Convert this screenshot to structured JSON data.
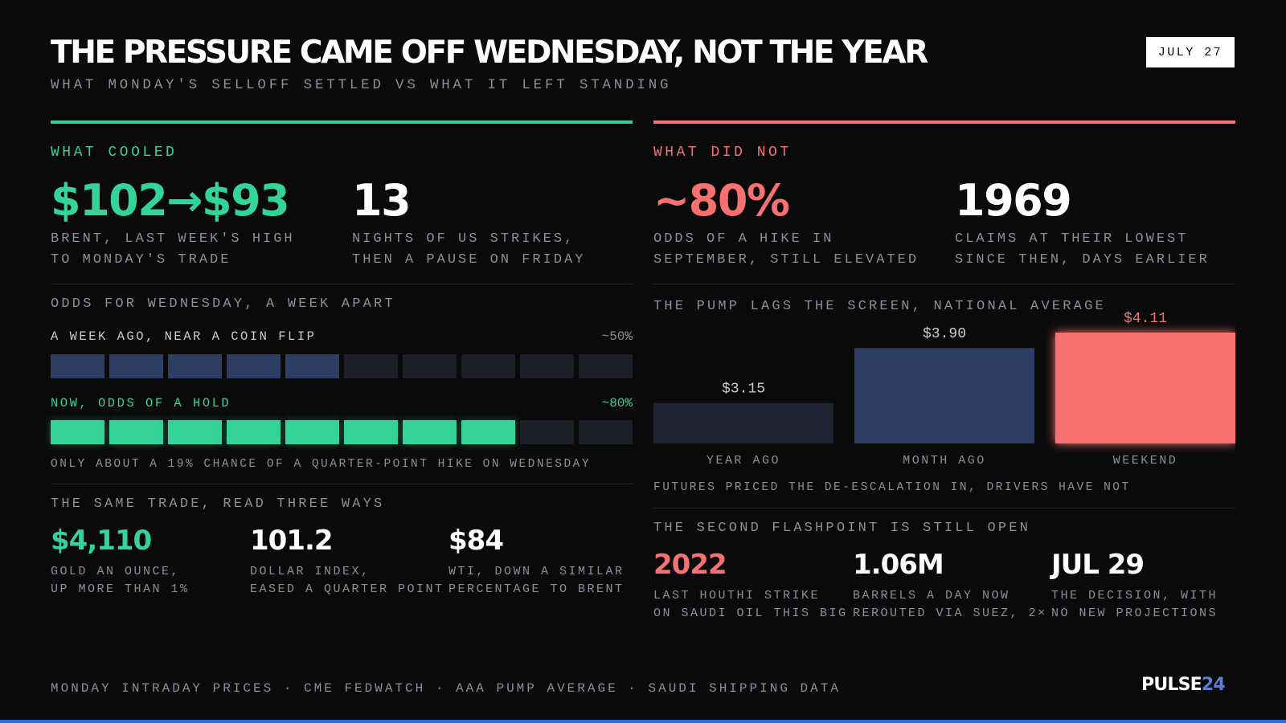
{
  "header": {
    "title": "THE PRESSURE CAME OFF WEDNESDAY, NOT THE YEAR",
    "subtitle": "WHAT MONDAY'S SELLOFF SETTLED VS WHAT IT LEFT STANDING",
    "date": "JULY 27"
  },
  "left": {
    "label": "WHAT COOLED",
    "stats": [
      {
        "value": "$102→$93",
        "caption1": "BRENT, LAST WEEK'S HIGH",
        "caption2": "TO MONDAY'S TRADE"
      },
      {
        "value": "13",
        "caption1": "NIGHTS OF US STRIKES,",
        "caption2": "THEN A PAUSE ON FRIDAY"
      }
    ],
    "odds": {
      "heading": "ODDS FOR WEDNESDAY, A WEEK APART",
      "rows": [
        {
          "label": "A WEEK AGO, NEAR A COIN FLIP",
          "value_label": "~50%",
          "filled": 5,
          "total": 10
        },
        {
          "label": "NOW, ODDS OF A HOLD",
          "value_label": "~80%",
          "filled": 8,
          "total": 10
        }
      ],
      "note": "ONLY ABOUT A 19% CHANCE OF A QUARTER-POINT HIKE ON WEDNESDAY"
    },
    "trade": {
      "heading": "THE SAME TRADE, READ THREE WAYS",
      "items": [
        {
          "value": "$4,110",
          "caption1": "GOLD AN OUNCE,",
          "caption2": "UP MORE THAN 1%"
        },
        {
          "value": "101.2",
          "caption1": "DOLLAR INDEX,",
          "caption2": "EASED A QUARTER POINT"
        },
        {
          "value": "$84",
          "caption1": "WTI, DOWN A SIMILAR",
          "caption2": "PERCENTAGE TO BRENT"
        }
      ]
    }
  },
  "right": {
    "label": "WHAT DID NOT",
    "stats": [
      {
        "value": "~80%",
        "caption1": "ODDS OF A HIKE IN",
        "caption2": "SEPTEMBER, STILL ELEVATED"
      },
      {
        "value": "1969",
        "caption1": "CLAIMS AT THEIR LOWEST",
        "caption2": "SINCE THEN, DAYS EARLIER"
      }
    ],
    "pump_note": "FUTURES PRICED THE DE-ESCALATION IN, DRIVERS HAVE NOT",
    "flash": {
      "heading": "THE SECOND FLASHPOINT IS STILL OPEN",
      "items": [
        {
          "value": "2022",
          "caption1": "LAST HOUTHI STRIKE",
          "caption2": "ON SAUDI OIL THIS BIG"
        },
        {
          "value": "1.06M",
          "caption1": "BARRELS A DAY NOW",
          "caption2": "REROUTED VIA SUEZ, 2×"
        },
        {
          "value": "JUL 29",
          "caption1": "THE DECISION, WITH",
          "caption2": "NO NEW PROJECTIONS"
        }
      ]
    }
  },
  "chart_data": {
    "type": "bar",
    "title": "THE PUMP LAGS THE SCREEN, NATIONAL AVERAGE",
    "categories": [
      "YEAR AGO",
      "MONTH AGO",
      "WEEKEND"
    ],
    "values": [
      3.15,
      3.9,
      4.11
    ],
    "value_labels": [
      "$3.15",
      "$3.90",
      "$4.11"
    ],
    "colors": [
      "#1f2333",
      "#2e3d63",
      "#f87171"
    ],
    "ylim": [
      2.6,
      4.11
    ]
  },
  "footer": {
    "sources": "MONDAY INTRADAY PRICES · CME FEDWATCH · AAA PUMP AVERAGE · SAUDI SHIPPING DATA",
    "logo_main": "PULSE",
    "logo_accent": "24"
  },
  "colors": {
    "background": "#0a0a0b",
    "cooled": "#34d399",
    "not_cooled": "#f87171",
    "seg_blue": "#2e3d63",
    "seg_empty": "#1c1f28",
    "logo_accent": "#5b7fd6"
  }
}
